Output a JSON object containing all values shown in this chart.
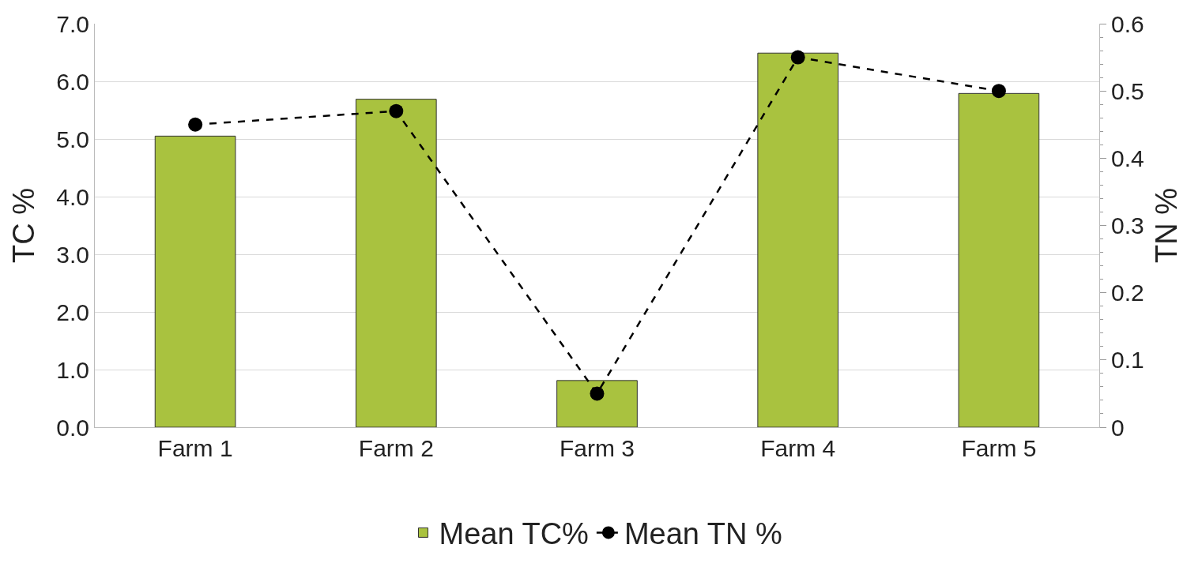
{
  "chart_data": {
    "type": "bar",
    "ylabel": "TC %",
    "y2label": "TN %",
    "categories": [
      "Farm 1",
      "Farm 2",
      "Farm 3",
      "Farm 4",
      "Farm 5"
    ],
    "series": [
      {
        "name": "Mean TC%",
        "color": "#a9c23f",
        "values": [
          5.05,
          5.69,
          0.81,
          6.49,
          5.79
        ]
      },
      {
        "name": "Mean TN %",
        "type": "line",
        "axis": "y2",
        "color": "#000000",
        "marker": "circle",
        "line_style": "dashed",
        "values": [
          0.45,
          0.47,
          0.05,
          0.55,
          0.5
        ]
      }
    ],
    "ylim": [
      0,
      7
    ],
    "yticks": [
      {
        "value": 0,
        "label": "0.0"
      },
      {
        "value": 1,
        "label": "1.0"
      },
      {
        "value": 2,
        "label": "2.0"
      },
      {
        "value": 3,
        "label": "3.0"
      },
      {
        "value": 4,
        "label": "4.0"
      },
      {
        "value": 5,
        "label": "5.0"
      },
      {
        "value": 6,
        "label": "6.0"
      },
      {
        "value": 7,
        "label": "7.0"
      }
    ],
    "y2lim": [
      0,
      0.6
    ],
    "y2ticks": [
      0,
      0.1,
      0.2,
      0.3,
      0.4,
      0.5,
      0.6
    ],
    "grid": "y",
    "legend": "bottom"
  }
}
